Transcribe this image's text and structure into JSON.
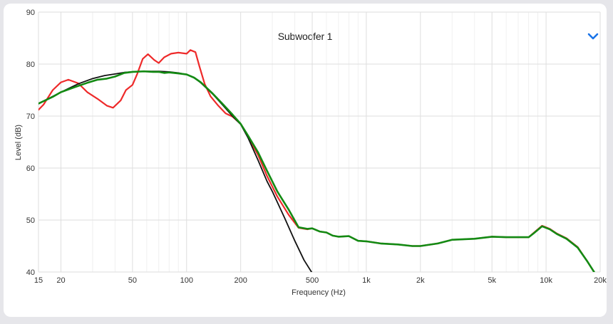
{
  "chart_data": {
    "type": "line",
    "title": "Subwoofer 1",
    "xlabel": "Frequency (Hz)",
    "ylabel": "Level (dB)",
    "xscale": "log",
    "xlim": [
      15,
      20000
    ],
    "ylim": [
      40,
      90
    ],
    "grid": true,
    "x_ticks": [
      {
        "value": 15,
        "label": "15"
      },
      {
        "value": 20,
        "label": "20"
      },
      {
        "value": 50,
        "label": "50"
      },
      {
        "value": 100,
        "label": "100"
      },
      {
        "value": 200,
        "label": "200"
      },
      {
        "value": 500,
        "label": "500"
      },
      {
        "value": 1000,
        "label": "1k"
      },
      {
        "value": 2000,
        "label": "2k"
      },
      {
        "value": 5000,
        "label": "5k"
      },
      {
        "value": 10000,
        "label": "10k"
      },
      {
        "value": 20000,
        "label": "20k"
      }
    ],
    "x_minor": [
      30,
      40,
      60,
      70,
      80,
      90,
      300,
      400,
      600,
      700,
      800,
      900,
      3000,
      4000,
      6000,
      7000,
      8000,
      9000
    ],
    "y_ticks": [
      40,
      50,
      60,
      70,
      80,
      90
    ],
    "series": [
      {
        "color": "#ee2a2a",
        "points": [
          [
            15,
            71.2
          ],
          [
            16,
            72.2
          ],
          [
            18,
            75.0
          ],
          [
            20,
            76.5
          ],
          [
            22,
            77.0
          ],
          [
            25,
            76.3
          ],
          [
            28,
            74.6
          ],
          [
            32,
            73.3
          ],
          [
            36,
            72.0
          ],
          [
            39,
            71.6
          ],
          [
            43,
            73.0
          ],
          [
            46,
            75.0
          ],
          [
            50,
            76.0
          ],
          [
            53,
            78.0
          ],
          [
            57,
            81.0
          ],
          [
            61,
            81.9
          ],
          [
            66,
            80.8
          ],
          [
            70,
            80.2
          ],
          [
            75,
            81.3
          ],
          [
            82,
            82.0
          ],
          [
            90,
            82.2
          ],
          [
            100,
            82.0
          ],
          [
            105,
            82.7
          ],
          [
            112,
            82.3
          ],
          [
            118,
            79.5
          ],
          [
            126,
            76.2
          ],
          [
            136,
            73.8
          ],
          [
            150,
            72.0
          ],
          [
            165,
            70.5
          ],
          [
            180,
            69.9
          ],
          [
            200,
            68.5
          ],
          [
            220,
            66.0
          ],
          [
            250,
            62.5
          ],
          [
            280,
            58.5
          ],
          [
            320,
            54.5
          ],
          [
            370,
            51.0
          ],
          [
            420,
            48.5
          ],
          [
            470,
            48.2
          ],
          [
            500,
            48.4
          ],
          [
            550,
            47.8
          ],
          [
            600,
            47.6
          ],
          [
            650,
            47.0
          ],
          [
            700,
            46.8
          ],
          [
            800,
            46.9
          ],
          [
            900,
            46.0
          ],
          [
            1000,
            45.9
          ],
          [
            1200,
            45.5
          ],
          [
            1500,
            45.3
          ],
          [
            1800,
            45.0
          ],
          [
            2000,
            45.0
          ],
          [
            2500,
            45.5
          ],
          [
            3000,
            46.2
          ],
          [
            4000,
            46.4
          ],
          [
            5000,
            46.8
          ],
          [
            6000,
            46.7
          ],
          [
            7000,
            46.7
          ],
          [
            8000,
            46.7
          ],
          [
            8500,
            47.5
          ],
          [
            9500,
            48.9
          ],
          [
            10500,
            48.3
          ],
          [
            11500,
            47.4
          ],
          [
            13000,
            46.5
          ],
          [
            15000,
            44.8
          ],
          [
            17000,
            42.0
          ],
          [
            18500,
            40.0
          ]
        ]
      },
      {
        "color": "#111111",
        "points": [
          [
            15,
            72.4
          ],
          [
            20,
            74.6
          ],
          [
            25,
            76.2
          ],
          [
            30,
            77.2
          ],
          [
            35,
            77.8
          ],
          [
            40,
            78.1
          ],
          [
            45,
            78.4
          ],
          [
            50,
            78.5
          ],
          [
            60,
            78.6
          ],
          [
            70,
            78.6
          ],
          [
            80,
            78.5
          ],
          [
            90,
            78.3
          ],
          [
            100,
            78.0
          ],
          [
            110,
            77.4
          ],
          [
            120,
            76.4
          ],
          [
            140,
            74.2
          ],
          [
            160,
            72.0
          ],
          [
            180,
            70.0
          ],
          [
            200,
            68.4
          ],
          [
            220,
            65.8
          ],
          [
            250,
            61.5
          ],
          [
            280,
            57.5
          ],
          [
            300,
            55.5
          ],
          [
            350,
            50.5
          ],
          [
            400,
            46.0
          ],
          [
            450,
            42.3
          ],
          [
            500,
            39.8
          ]
        ]
      },
      {
        "color": "#138a13",
        "points": [
          [
            15,
            72.4
          ],
          [
            18,
            73.7
          ],
          [
            20,
            74.6
          ],
          [
            24,
            75.6
          ],
          [
            28,
            76.4
          ],
          [
            32,
            77.0
          ],
          [
            36,
            77.2
          ],
          [
            40,
            77.6
          ],
          [
            45,
            78.3
          ],
          [
            50,
            78.5
          ],
          [
            58,
            78.6
          ],
          [
            65,
            78.5
          ],
          [
            70,
            78.5
          ],
          [
            75,
            78.3
          ],
          [
            80,
            78.4
          ],
          [
            90,
            78.2
          ],
          [
            100,
            78.0
          ],
          [
            110,
            77.4
          ],
          [
            120,
            76.5
          ],
          [
            140,
            74.3
          ],
          [
            160,
            72.2
          ],
          [
            180,
            70.3
          ],
          [
            200,
            68.5
          ],
          [
            220,
            66.2
          ],
          [
            250,
            63.0
          ],
          [
            280,
            59.5
          ],
          [
            320,
            55.5
          ],
          [
            370,
            52.0
          ],
          [
            420,
            48.6
          ],
          [
            470,
            48.3
          ],
          [
            500,
            48.4
          ],
          [
            550,
            47.8
          ],
          [
            600,
            47.6
          ],
          [
            650,
            47.0
          ],
          [
            700,
            46.8
          ],
          [
            800,
            46.9
          ],
          [
            900,
            46.0
          ],
          [
            1000,
            45.9
          ],
          [
            1200,
            45.5
          ],
          [
            1500,
            45.3
          ],
          [
            1800,
            45.0
          ],
          [
            2000,
            45.0
          ],
          [
            2500,
            45.5
          ],
          [
            3000,
            46.2
          ],
          [
            4000,
            46.4
          ],
          [
            5000,
            46.8
          ],
          [
            6000,
            46.7
          ],
          [
            7000,
            46.7
          ],
          [
            8000,
            46.7
          ],
          [
            8500,
            47.4
          ],
          [
            9500,
            48.8
          ],
          [
            10500,
            48.2
          ],
          [
            11500,
            47.3
          ],
          [
            13000,
            46.4
          ],
          [
            15000,
            44.7
          ],
          [
            17000,
            42.0
          ],
          [
            18500,
            40.0
          ]
        ]
      }
    ]
  },
  "ui": {
    "accent": "#1a73e8",
    "dropdown_icon": "chevron-down-icon"
  }
}
